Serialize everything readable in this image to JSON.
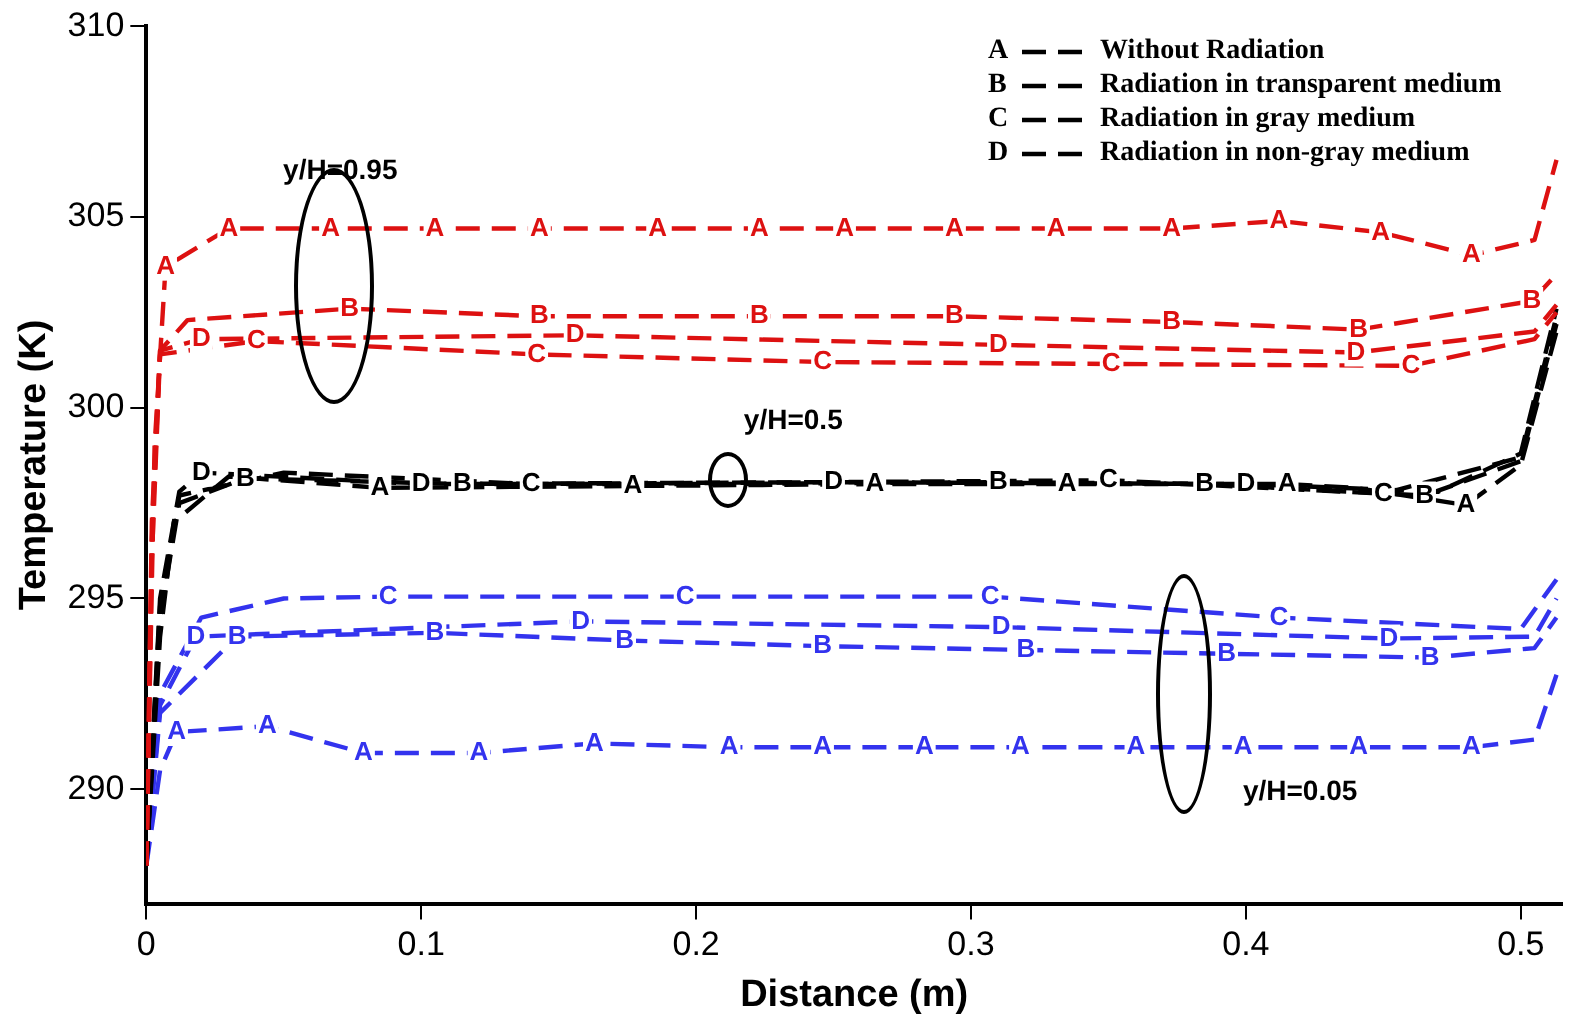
{
  "chart_data": {
    "type": "line",
    "xlabel": "Distance (m)",
    "ylabel": "Temperature (K)",
    "xlim": [
      0,
      0.515
    ],
    "xticks": [
      0,
      0.1,
      0.2,
      0.3,
      0.4,
      0.5
    ],
    "ylim": [
      287,
      310
    ],
    "yticks": [
      290,
      295,
      300,
      305,
      310
    ],
    "grid": false,
    "legend": "top right",
    "line_style": "dashed",
    "annotations": [
      "y/H=0.95",
      "y/H=0.5",
      "y/H=0.05"
    ],
    "series": [
      {
        "color": "#dd1111",
        "x": [
          0,
          0.003,
          0.007,
          0.03,
          0.067,
          0.105,
          0.143,
          0.186,
          0.223,
          0.254,
          0.294,
          0.331,
          0.373,
          0.412,
          0.449,
          0.482,
          0.505,
          0.513
        ],
        "values": [
          288,
          299,
          303.7,
          304.7,
          304.7,
          304.7,
          304.7,
          304.7,
          304.7,
          304.7,
          304.7,
          304.7,
          304.7,
          304.9,
          304.6,
          304,
          304.4,
          306.5
        ],
        "value_labels": [
          null,
          null,
          "A",
          "A",
          "A",
          "A",
          "A",
          "A",
          "A",
          "A",
          "A",
          "A",
          "A",
          "A",
          "A",
          "A",
          null,
          null
        ]
      },
      {
        "color": "#dd1111",
        "x": [
          0,
          0.002,
          0.005,
          0.015,
          0.074,
          0.143,
          0.223,
          0.294,
          0.373,
          0.441,
          0.504,
          0.513
        ],
        "values": [
          288,
          297,
          301.5,
          302.3,
          302.6,
          302.4,
          302.4,
          302.4,
          302.25,
          302.05,
          302.8,
          303.5
        ],
        "value_labels": [
          null,
          null,
          null,
          null,
          "B",
          "B",
          "B",
          "B",
          "B",
          "B",
          "B",
          null
        ]
      },
      {
        "color": "#dd1111",
        "x": [
          0,
          0.002,
          0.005,
          0.04,
          0.142,
          0.246,
          0.351,
          0.46,
          0.505,
          0.513
        ],
        "values": [
          288,
          296,
          301.4,
          301.75,
          301.4,
          301.2,
          301.15,
          301.1,
          301.8,
          302.5
        ],
        "value_labels": [
          null,
          null,
          null,
          "C",
          "C",
          "C",
          "C",
          "C",
          null,
          null
        ]
      },
      {
        "color": "#dd1111",
        "x": [
          0,
          0.002,
          0.005,
          0.02,
          0.156,
          0.31,
          0.44,
          0.505,
          0.513
        ],
        "values": [
          288,
          296.5,
          301.5,
          301.8,
          301.9,
          301.65,
          301.45,
          302,
          302.7
        ],
        "value_labels": [
          null,
          null,
          null,
          "D",
          "D",
          "D",
          "D",
          null,
          null
        ]
      },
      {
        "name": "Without Radiation",
        "color": "#000000",
        "x": [
          0,
          0.005,
          0.01,
          0.03,
          0.085,
          0.177,
          0.265,
          0.335,
          0.415,
          0.44,
          0.48,
          0.5,
          0.513
        ],
        "values": [
          288,
          294,
          297,
          298.2,
          297.9,
          297.95,
          298,
          298,
          298,
          297.9,
          297.45,
          298.5,
          302
        ],
        "value_labels": [
          null,
          null,
          null,
          null,
          "A",
          "A",
          "A",
          "A",
          "A",
          null,
          "A",
          null,
          null
        ]
      },
      {
        "name": "Radiation in transparent medium",
        "color": "#000000",
        "x": [
          0,
          0.005,
          0.012,
          0.036,
          0.115,
          0.2,
          0.31,
          0.385,
          0.465,
          0.5,
          0.513
        ],
        "values": [
          288,
          294.5,
          297.5,
          298.15,
          298,
          298,
          298.05,
          298,
          297.7,
          298.6,
          302.2
        ],
        "value_labels": [
          null,
          null,
          null,
          "B",
          "B",
          null,
          "B",
          "B",
          "B",
          null,
          null
        ]
      },
      {
        "name": "Radiation in gray medium",
        "color": "#000000",
        "x": [
          0,
          0.005,
          0.012,
          0.05,
          0.14,
          0.25,
          0.35,
          0.45,
          0.5,
          0.513
        ],
        "values": [
          288,
          294.8,
          297.7,
          298.3,
          298,
          298.05,
          298.1,
          297.75,
          298.7,
          302.4
        ],
        "value_labels": [
          null,
          null,
          null,
          null,
          "C",
          null,
          "C",
          "C",
          null,
          null
        ]
      },
      {
        "name": "Radiation in non-gray medium",
        "color": "#000000",
        "x": [
          0,
          0.005,
          0.012,
          0.02,
          0.1,
          0.25,
          0.4,
          0.47,
          0.5,
          0.513
        ],
        "values": [
          288,
          295,
          297.8,
          298.3,
          298,
          298.05,
          298,
          297.8,
          298.8,
          302.6
        ],
        "value_labels": [
          null,
          null,
          null,
          "D",
          "D",
          "D",
          "D",
          null,
          null,
          null
        ]
      },
      {
        "color": "#3333ee",
        "x": [
          0,
          0.005,
          0.011,
          0.044,
          0.079,
          0.121,
          0.163,
          0.212,
          0.246,
          0.283,
          0.318,
          0.36,
          0.399,
          0.441,
          0.482,
          0.505,
          0.513
        ],
        "values": [
          288,
          290.5,
          291.5,
          291.65,
          290.95,
          290.95,
          291.2,
          291.1,
          291.1,
          291.1,
          291.1,
          291.1,
          291.1,
          291.1,
          291.1,
          291.3,
          293
        ],
        "value_labels": [
          null,
          null,
          "A",
          "A",
          "A",
          "A",
          "A",
          "A",
          "A",
          "A",
          "A",
          "A",
          "A",
          "A",
          "A",
          null,
          null
        ]
      },
      {
        "color": "#3333ee",
        "x": [
          0,
          0.005,
          0.033,
          0.105,
          0.174,
          0.246,
          0.32,
          0.393,
          0.467,
          0.505,
          0.513
        ],
        "values": [
          288,
          292,
          294,
          294.1,
          293.9,
          293.75,
          293.65,
          293.55,
          293.45,
          293.7,
          294.5
        ],
        "value_labels": [
          null,
          null,
          "B",
          "B",
          "B",
          "B",
          "B",
          "B",
          "B",
          null,
          null
        ]
      },
      {
        "color": "#3333ee",
        "x": [
          0,
          0.005,
          0.02,
          0.05,
          0.088,
          0.196,
          0.307,
          0.412,
          0.5,
          0.513
        ],
        "values": [
          288,
          292.5,
          294.5,
          295,
          295.05,
          295.05,
          295.05,
          294.5,
          294.2,
          295.5
        ],
        "value_labels": [
          null,
          null,
          null,
          null,
          "C",
          "C",
          "C",
          "C",
          null,
          null
        ]
      },
      {
        "color": "#3333ee",
        "x": [
          0,
          0.005,
          0.018,
          0.158,
          0.311,
          0.452,
          0.505,
          0.513
        ],
        "values": [
          288,
          292.2,
          294,
          294.4,
          294.25,
          293.95,
          294,
          295
        ],
        "value_labels": [
          null,
          null,
          "D",
          "D",
          "D",
          "D",
          null,
          null
        ]
      }
    ]
  }
}
